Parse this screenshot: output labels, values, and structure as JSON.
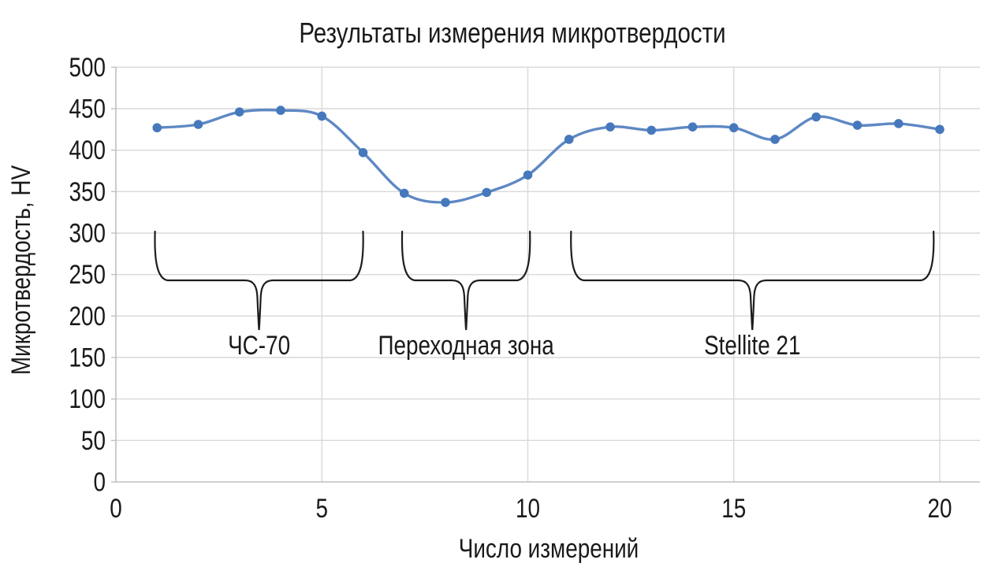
{
  "chart_data": {
    "type": "line",
    "title": "Результаты измерения микротвердости",
    "xlabel": "Число измерений",
    "ylabel": "Микротвердость, HV",
    "x": [
      1,
      2,
      3,
      4,
      5,
      6,
      7,
      8,
      9,
      10,
      11,
      12,
      13,
      14,
      15,
      16,
      17,
      18,
      19,
      20
    ],
    "series": [
      {
        "name": "Микротвердость HV",
        "values": [
          427,
          431,
          446,
          448,
          441,
          397,
          348,
          337,
          349,
          370,
          413,
          428,
          424,
          428,
          427,
          413,
          440,
          430,
          432,
          425
        ]
      }
    ],
    "ylim": [
      0,
      500
    ],
    "ytick_step": 50,
    "yticks": [
      0,
      50,
      100,
      150,
      200,
      250,
      300,
      350,
      400,
      450,
      500
    ],
    "xticks": [
      0,
      5,
      10,
      15,
      20
    ],
    "xlim": [
      0,
      21
    ],
    "grid": true,
    "legend": "none",
    "line_smooth": true,
    "colors": {
      "line": "#5E88C4",
      "marker": "#4678BC",
      "gridline": "#D9D9D9",
      "axis": "#C0C0C0",
      "text": "#1A1A1A",
      "brace": "#1D1D1D",
      "background": "#FFFFFF"
    },
    "annotations": [
      {
        "label": "ЧС-70",
        "x_start": 0.95,
        "x_end": 6.0
      },
      {
        "label": "Переходная зона",
        "x_start": 6.95,
        "x_end": 10.05
      },
      {
        "label": "Stellite 21",
        "x_start": 11.05,
        "x_end": 19.85
      }
    ]
  }
}
